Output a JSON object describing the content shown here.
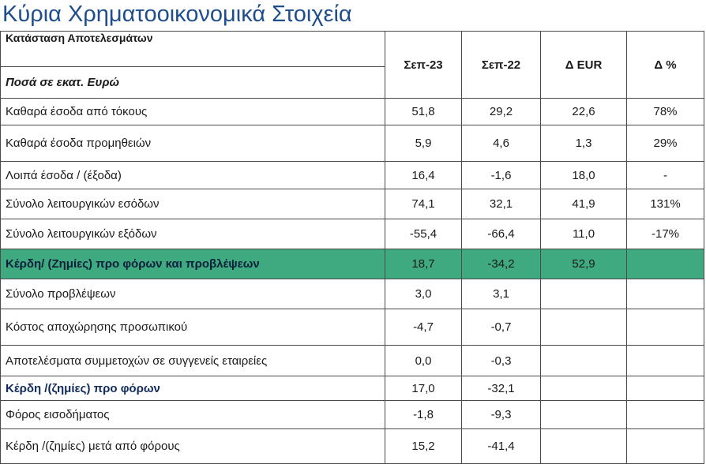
{
  "title": "Κύρια Χρηματοοικονομικά Στοιχεία",
  "table": {
    "header_main": "Κατάσταση Αποτελεσμάτων",
    "header_sub": "Ποσά σε εκατ. Ευρώ",
    "columns": [
      "Σεπ-23",
      "Σεπ-22",
      "Δ EUR",
      "Δ %"
    ],
    "rows": [
      {
        "label": "Καθαρά έσοδα από τόκους",
        "sep23": "51,8",
        "sep22": "29,2",
        "d_eur": "22,6",
        "d_pct": "78%"
      },
      {
        "label": "Καθαρά έσοδα προμηθειών",
        "sep23": "5,9",
        "sep22": "4,6",
        "d_eur": "1,3",
        "d_pct": "29%"
      },
      {
        "label": "Λοιπά έσοδα / (έξοδα)",
        "sep23": "16,4",
        "sep22": "-1,6",
        "d_eur": "18,0",
        "d_pct": "-"
      },
      {
        "label": "Σύνολο λειτουργικών εσόδων",
        "sep23": "74,1",
        "sep22": "32,1",
        "d_eur": "41,9",
        "d_pct": "131%"
      },
      {
        "label": "Σύνολο λειτουργικών εξόδων",
        "sep23": "-55,4",
        "sep22": "-66,4",
        "d_eur": "11,0",
        "d_pct": "-17%"
      },
      {
        "label": "Κέρδη/ (Ζημίες) προ φόρων και προβλέψεων",
        "sep23": "18,7",
        "sep22": "-34,2",
        "d_eur": "52,9",
        "d_pct": ""
      },
      {
        "label": "Σύνολο προβλέψεων",
        "sep23": "3,0",
        "sep22": "3,1",
        "d_eur": "",
        "d_pct": ""
      },
      {
        "label": "Κόστος αποχώρησης προσωπικού",
        "sep23": "-4,7",
        "sep22": "-0,7",
        "d_eur": "",
        "d_pct": ""
      },
      {
        "label": "Αποτελέσματα συμμετοχών σε συγγενείς εταιρείες",
        "sep23": "0,0",
        "sep22": "-0,3",
        "d_eur": "",
        "d_pct": ""
      },
      {
        "label": "Κέρδη /(ζημίες) προ φόρων",
        "sep23": "17,0",
        "sep22": "-32,1",
        "d_eur": "",
        "d_pct": ""
      },
      {
        "label": "Φόρος εισοδήματος",
        "sep23": "-1,8",
        "sep22": "-9,3",
        "d_eur": "",
        "d_pct": ""
      },
      {
        "label": "Κέρδη /(ζημίες) μετά από φόρους",
        "sep23": "15,2",
        "sep22": "-41,4",
        "d_eur": "",
        "d_pct": ""
      }
    ]
  },
  "colors": {
    "title": "#1f4e8c",
    "header_text": "#102a5c",
    "highlight_row": "#3faa7f"
  }
}
